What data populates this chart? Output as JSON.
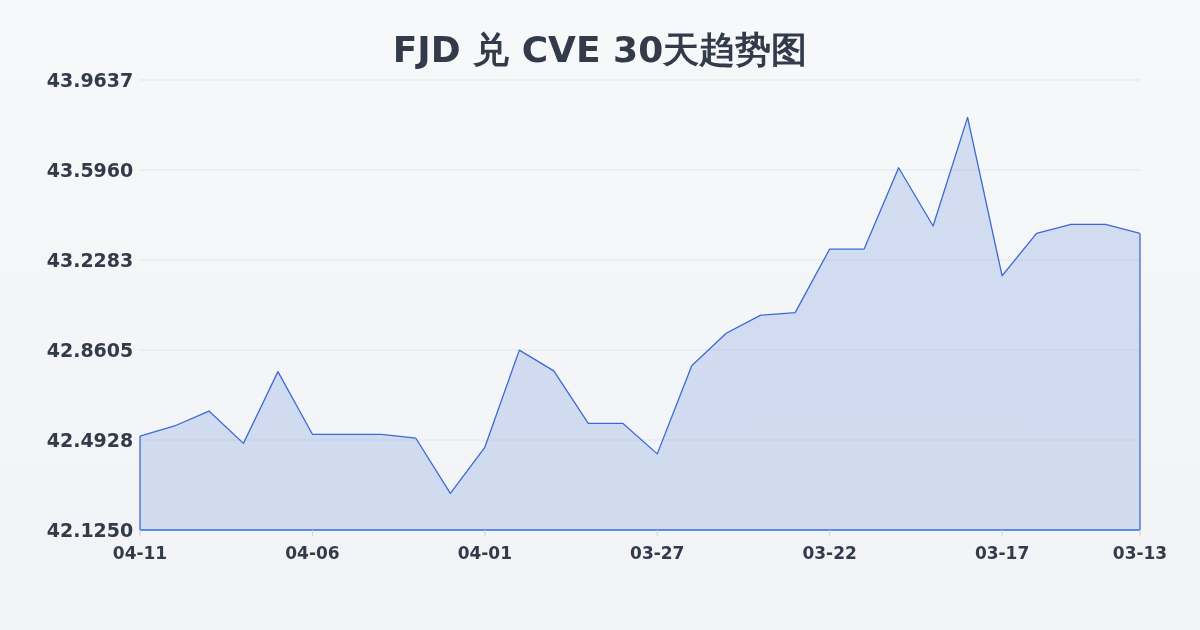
{
  "chart_data": {
    "type": "area",
    "title": "FJD 兑 CVE 30天趋势图",
    "categories": [
      "04-11",
      null,
      null,
      null,
      null,
      "04-06",
      null,
      null,
      null,
      null,
      "04-01",
      null,
      null,
      null,
      null,
      "03-27",
      null,
      null,
      null,
      null,
      "03-22",
      null,
      null,
      null,
      null,
      "03-17",
      null,
      null,
      null,
      "03-13"
    ],
    "values": [
      42.509,
      42.55,
      42.611,
      42.479,
      42.772,
      42.516,
      42.516,
      42.516,
      42.5,
      42.275,
      42.463,
      42.86,
      42.775,
      42.561,
      42.561,
      42.436,
      42.796,
      42.929,
      43.003,
      43.013,
      43.273,
      43.273,
      43.605,
      43.367,
      43.811,
      43.164,
      43.337,
      43.374,
      43.374,
      43.337
    ],
    "color": "#3a6bd4",
    "ylim": [
      42.125,
      43.9637
    ],
    "yticks": [
      {
        "value": 42.125,
        "label": "42.1250"
      },
      {
        "value": 42.4928,
        "label": "42.4928"
      },
      {
        "value": 42.8605,
        "label": "42.8605"
      },
      {
        "value": 43.2283,
        "label": "43.2283"
      },
      {
        "value": 43.596,
        "label": "43.5960"
      },
      {
        "value": 43.9637,
        "label": "43.9637"
      }
    ],
    "grid": "y"
  }
}
